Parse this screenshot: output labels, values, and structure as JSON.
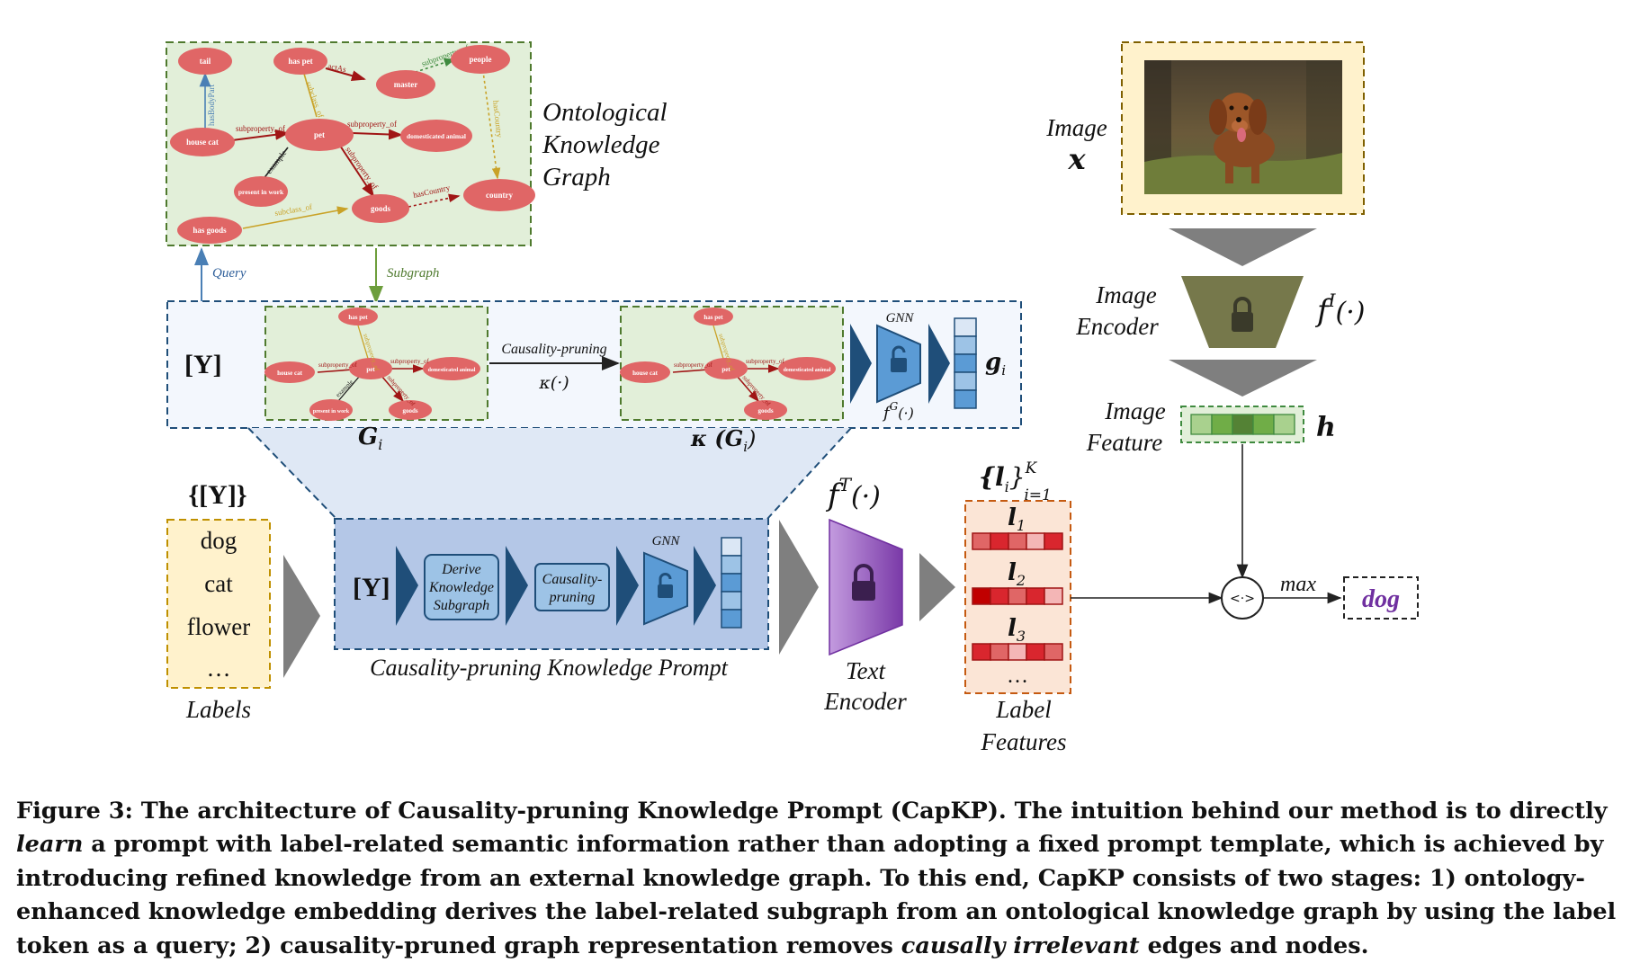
{
  "ontology": {
    "title_lines": [
      "Ontological",
      "Knowledge",
      "Graph"
    ],
    "nodes": [
      "tail",
      "has pet",
      "master",
      "people",
      "house cat",
      "pet",
      "domesticated animal",
      "present in work",
      "goods",
      "country",
      "has goods"
    ],
    "edges": [
      "hasBodyPart",
      "subproperty_of",
      "actAs",
      "subproperty_of",
      "subclass_of",
      "subproperty_of",
      "example",
      "subproperty_of",
      "hasCountry",
      "hasCountry",
      "subclass_of"
    ],
    "query_label": "Query",
    "subgraph_label": "Subgraph"
  },
  "query_token": "[Y]",
  "subgraph": {
    "nodes": [
      "has pet",
      "house cat",
      "pet",
      "domesticated animal",
      "present in work",
      "goods"
    ],
    "edges": [
      "subproperty_of",
      "subproperty_of",
      "subproperty_of",
      "example",
      "subproperty_of"
    ],
    "gi_label": "G",
    "gi_sub": "i",
    "kappa_gi_label": "κ (G",
    "kappa_gi_close": ")",
    "pruning_label": "Causality-pruning",
    "kappa_label": "κ(·)",
    "gnn_label": "GNN",
    "fg_label": "f",
    "fg_sup": "G",
    "fg_arg": "(·)",
    "g_label": "g",
    "g_sub": "i"
  },
  "labels_box": {
    "set_label": "{[Y]}",
    "items": [
      "dog",
      "cat",
      "flower",
      "…"
    ],
    "caption": "Labels"
  },
  "prompt_module": {
    "token": "[Y]",
    "step1_lines": [
      "Derive",
      "Knowledge",
      "Subgraph"
    ],
    "step2_lines": [
      "Causality-",
      "pruning"
    ],
    "gnn_label": "GNN",
    "caption": "Causality-pruning Knowledge Prompt"
  },
  "text_encoder": {
    "fn_label": "f",
    "fn_sup": "T",
    "fn_arg": "(·)",
    "caption_lines": [
      "Text",
      "Encoder"
    ]
  },
  "label_features": {
    "set_label": "{l",
    "set_sub": "i",
    "set_close": "}",
    "set_sup": "K",
    "set_range": "i=1",
    "rows": [
      {
        "l": "l",
        "sub": "1"
      },
      {
        "l": "l",
        "sub": "2"
      },
      {
        "l": "l",
        "sub": "3"
      }
    ],
    "ellipsis": "…",
    "caption_lines": [
      "Label",
      "Features"
    ]
  },
  "image_branch": {
    "image_label_lines": [
      "Image",
      "x"
    ],
    "encoder_lines": [
      "Image",
      "Encoder"
    ],
    "encoder_fn": "f",
    "encoder_sup": "I",
    "encoder_arg": "(·)",
    "feature_lines": [
      "Image",
      "Feature"
    ],
    "feature_symbol": "h"
  },
  "output": {
    "similarity_symbol": "<·>",
    "max_label": "max",
    "result": "dog"
  },
  "caption": {
    "prefix": "Figure 3: The architecture of Causality-pruning Knowledge Prompt (CapKP). The intuition behind our method is to directly ",
    "learn": "learn",
    "mid": " a prompt with label-related semantic information rather than adopting a fixed prompt template, which is achieved by introducing refined knowledge from an external knowledge graph. To this end, CapKP consists of two stages: 1) ontology-enhanced knowledge embedding derives the label-related subgraph from an ontological knowledge graph by using the label token as a query; 2) causality-pruned graph representation removes ",
    "causally": "causally irrelevant",
    "suffix": " edges and nodes."
  },
  "colors": {
    "node_fill": "#e06666",
    "graph_bg": "#e2efd9",
    "prompt_bg": "#b4c7e7",
    "label_fill": "#fff2cc",
    "feature_bg": "#fbe5d6",
    "red_cell": "#d9262e",
    "blue_arrow": "#1f4e79",
    "purple": "#7030a0",
    "olive": "#76784b"
  }
}
